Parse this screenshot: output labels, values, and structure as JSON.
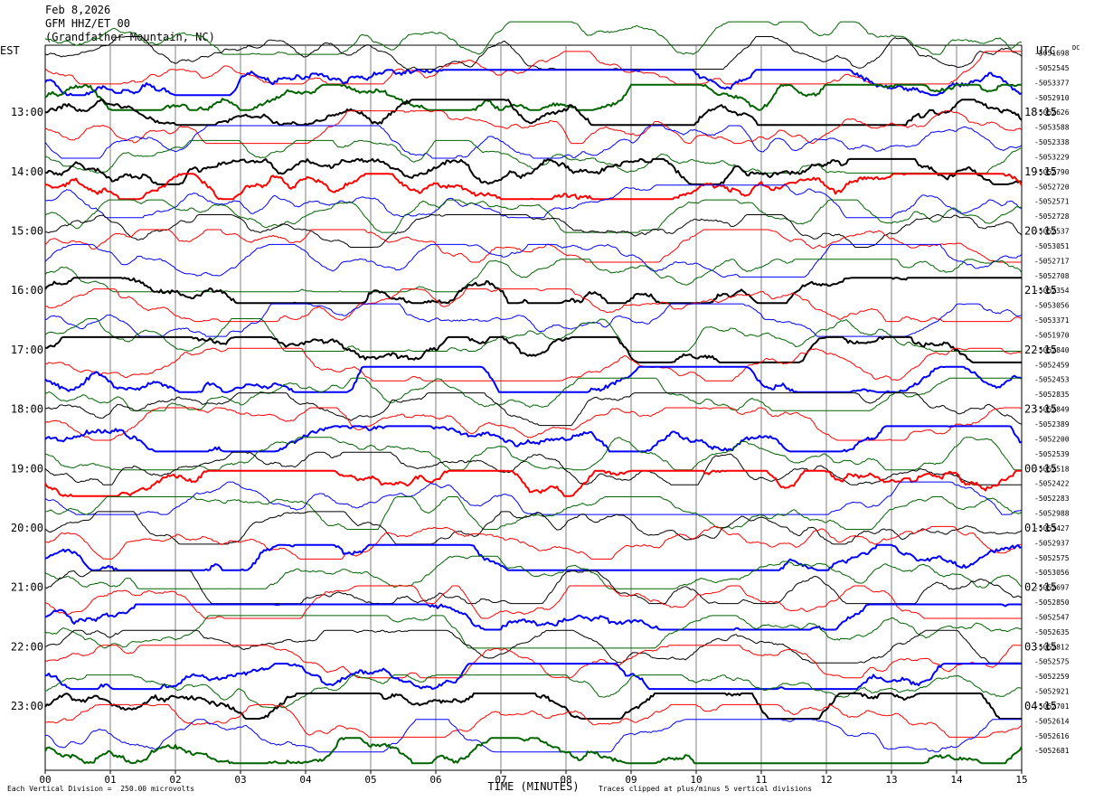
{
  "header": {
    "date": "Feb 8,2026",
    "station": "GFM HHZ/ET 00",
    "location": "(Grandfather Mountain, NC)"
  },
  "footer": {
    "scale_note": "Each Vertical Division =  250.00 microvolts",
    "clip_note": "Traces clipped at plus/minus 5 vertical divisions"
  },
  "chart_data": {
    "type": "line",
    "title": "GFM HHZ/ET 00",
    "xlabel": "TIME (MINUTES)",
    "ylabel_left": "EST",
    "ylabel_right": "UTC",
    "xlim": [
      0,
      15
    ],
    "x_ticks": [
      "00",
      "01",
      "02",
      "03",
      "04",
      "05",
      "06",
      "07",
      "08",
      "09",
      "10",
      "11",
      "12",
      "13",
      "14",
      "15"
    ],
    "left_hour_labels": [
      "13:00",
      "14:00",
      "15:00",
      "16:00",
      "17:00",
      "18:00",
      "19:00",
      "20:00",
      "21:00",
      "22:00",
      "23:00"
    ],
    "right_hour_labels": [
      "18:15",
      "19:15",
      "20:15",
      "21:15",
      "22:15",
      "23:15",
      "00:15",
      "01:15",
      "02:15",
      "03:15",
      "04:15"
    ],
    "dc_label": "DC",
    "trace_colors": [
      "#000000",
      "#ff0000",
      "#0000ff",
      "#006400"
    ],
    "traces_per_hour": 4,
    "minutes_per_trace": 15,
    "dc_offsets": [
      "-5051698",
      "-5052545",
      "-5053377",
      "-5052910",
      "-5052626",
      "-5053588",
      "-5052338",
      "-5053229",
      "-5052790",
      "-5052720",
      "-5052571",
      "-5052728",
      "-5052537",
      "-5053051",
      "-5052717",
      "-5052708",
      "-5052354",
      "-5053056",
      "-5053371",
      "-5051970",
      "-5052840",
      "-5052459",
      "-5052453",
      "-5052835",
      "-5052849",
      "-5052389",
      "-5052200",
      "-5052539",
      "-5052518",
      "-5052422",
      "-5052283",
      "-5052988",
      "-5053427",
      "-5052937",
      "-5052575",
      "-5053056",
      "-5052697",
      "-5052850",
      "-5052547",
      "-5052635",
      "-5052812",
      "-5052575",
      "-5052259",
      "-5052921",
      "-5052701",
      "-5052614",
      "-5052616",
      "-5052681"
    ]
  }
}
